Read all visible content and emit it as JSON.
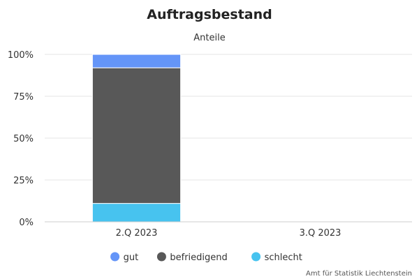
{
  "chart_data": {
    "type": "bar",
    "stacked": true,
    "title": "Auftragsbestand",
    "subtitle": "Anteile",
    "categories": [
      "2.Q 2023",
      "3.Q 2023"
    ],
    "series": [
      {
        "name": "gut",
        "color": "#6495f8",
        "values": [
          8,
          null
        ]
      },
      {
        "name": "befriedigend",
        "color": "#585858",
        "values": [
          81,
          null
        ]
      },
      {
        "name": "schlecht",
        "color": "#47c3ef",
        "values": [
          11,
          null
        ]
      }
    ],
    "y_ticks": [
      "0%",
      "25%",
      "50%",
      "75%",
      "100%"
    ],
    "ylim": [
      0,
      100
    ],
    "grid": true,
    "legend_position": "bottom"
  },
  "credits": "Amt für Statistik Liechtenstein"
}
